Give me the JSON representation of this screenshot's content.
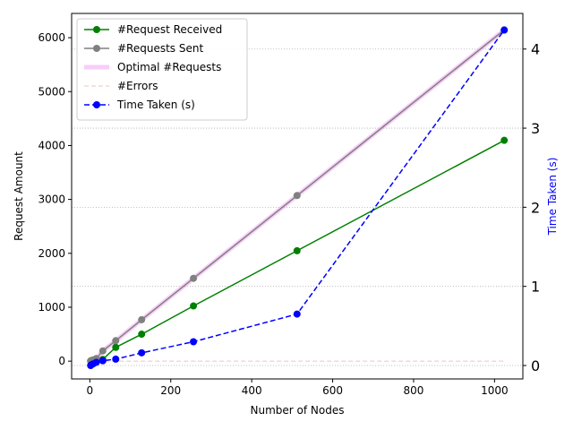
{
  "chart_data": {
    "type": "line",
    "xlabel": "Number of Nodes",
    "ylabel": "Request Amount",
    "y2label": "Time Taken (s)",
    "xlim": [
      -45,
      1070
    ],
    "ylim": [
      -330,
      6450
    ],
    "y2lim": [
      -0.17,
      4.45
    ],
    "x_ticks": [
      0,
      200,
      400,
      600,
      800,
      1000
    ],
    "y_ticks": [
      0,
      1000,
      2000,
      3000,
      4000,
      5000,
      6000
    ],
    "y2_ticks": [
      0,
      1,
      2,
      3,
      4
    ],
    "grid": "horizontal dotted on right axis",
    "legend_position": "upper-left",
    "x": [
      2,
      4,
      8,
      16,
      32,
      64,
      128,
      256,
      512,
      1024
    ],
    "series": [
      {
        "name": "#Request Received",
        "axis": "left",
        "color": "#008000",
        "style": "solid",
        "marker": "circle",
        "values": [
          2,
          4,
          8,
          16,
          32,
          256,
          500,
          1024,
          2048,
          4096
        ]
      },
      {
        "name": "#Requests Sent",
        "axis": "left",
        "color": "#808080",
        "style": "solid",
        "marker": "circle",
        "values": [
          6,
          12,
          24,
          48,
          190,
          380,
          768,
          1536,
          3072,
          6144
        ]
      },
      {
        "name": "Optimal #Requests",
        "axis": "left",
        "color": "#ee82ee",
        "style": "thick-faded",
        "marker": "none",
        "values": [
          6,
          12,
          24,
          48,
          190,
          380,
          768,
          1536,
          3072,
          6144
        ]
      },
      {
        "name": "#Errors",
        "axis": "left",
        "color": "#f08080",
        "style": "dashed-faded",
        "marker": "none",
        "values": [
          0,
          0,
          0,
          0,
          0,
          0,
          0,
          0,
          0,
          0
        ]
      },
      {
        "name": "Time Taken (s)",
        "axis": "right",
        "color": "#0000ff",
        "style": "dashed",
        "marker": "circle",
        "values": [
          0.0,
          0.01,
          0.02,
          0.04,
          0.06,
          0.08,
          0.16,
          0.3,
          0.65,
          4.24
        ]
      }
    ]
  }
}
